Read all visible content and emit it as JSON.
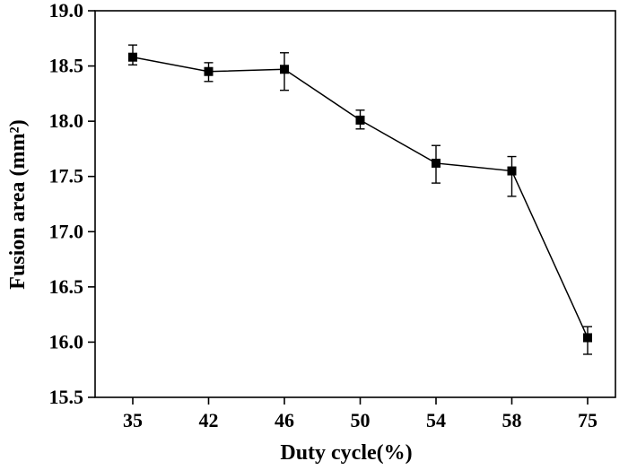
{
  "chart_data": {
    "type": "line",
    "title": "",
    "xlabel": "Duty cycle(%)",
    "ylabel": "Fusion area (mm²)",
    "categories": [
      "35",
      "42",
      "46",
      "50",
      "54",
      "58",
      "75"
    ],
    "series": [
      {
        "name": "Fusion area",
        "marker": "square",
        "values": [
          18.58,
          18.45,
          18.47,
          18.01,
          17.62,
          17.55,
          16.04
        ],
        "error_upper": [
          18.69,
          18.53,
          18.62,
          18.1,
          17.78,
          17.68,
          16.14
        ],
        "error_lower": [
          18.51,
          18.36,
          18.28,
          17.93,
          17.44,
          17.32,
          15.89
        ]
      }
    ],
    "ylim": [
      15.5,
      19.0
    ],
    "yticks": [
      15.5,
      16.0,
      16.5,
      17.0,
      17.5,
      18.0,
      18.5,
      19.0
    ],
    "ytick_labels": [
      "15.5",
      "16.0",
      "16.5",
      "17.0",
      "17.5",
      "18.0",
      "18.5",
      "19.0"
    ],
    "grid": false,
    "legend": "none",
    "colors": {
      "line": "#000000",
      "marker": "#000000",
      "axes": "#000000",
      "background": "#ffffff"
    }
  }
}
